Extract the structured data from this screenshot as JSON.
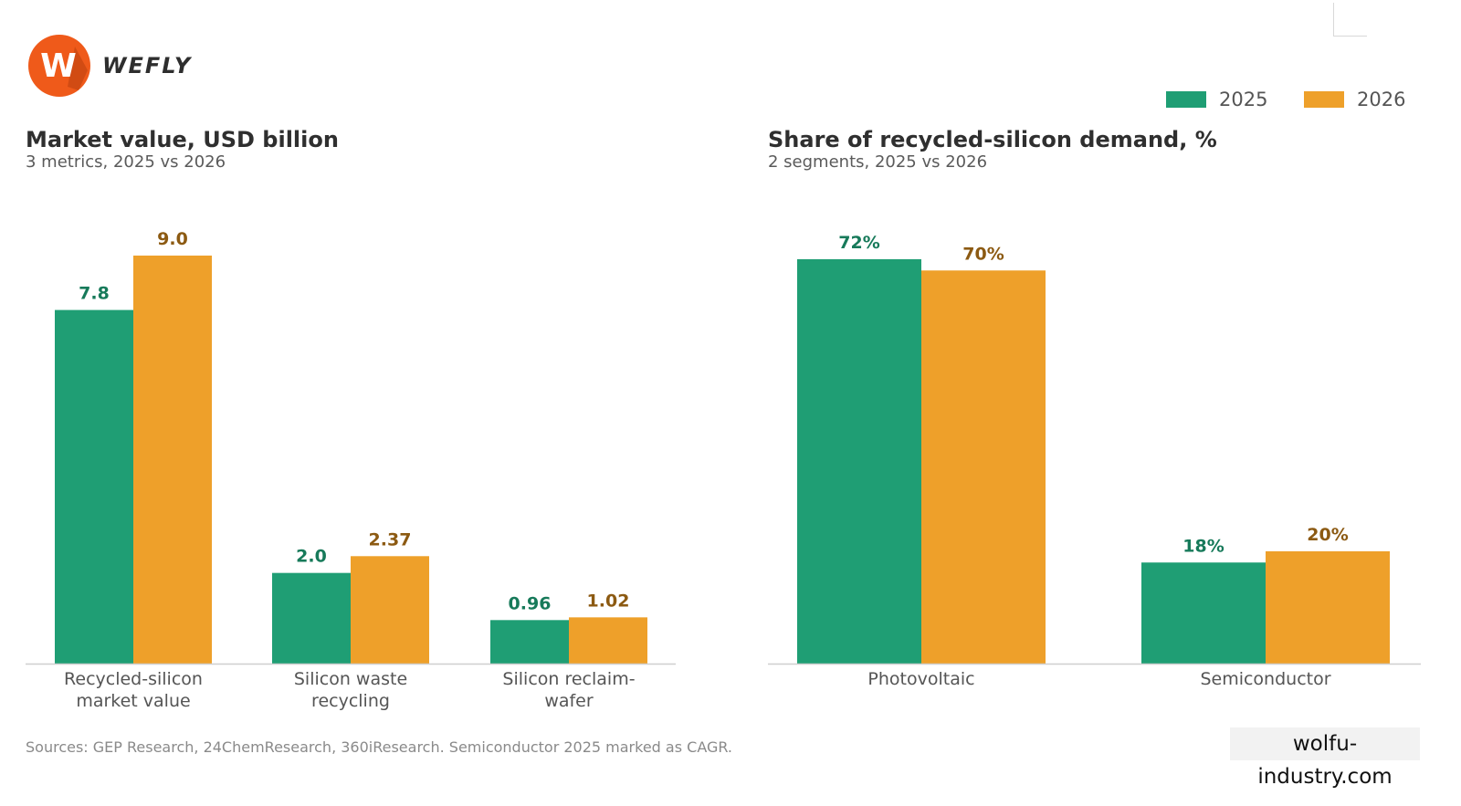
{
  "brand": {
    "name": "WEFLY",
    "badge_letter": "W",
    "badge_color": "#ef5a1a"
  },
  "legend": [
    {
      "label": "2025",
      "color": "#1f9e74"
    },
    {
      "label": "2026",
      "color": "#eea02a"
    }
  ],
  "chart_data": [
    {
      "type": "bar",
      "title": "Market value, USD billion",
      "subtitle": "3 metrics, 2025 vs 2026",
      "categories": [
        [
          "Recycled-silicon",
          "market value"
        ],
        [
          "Silicon waste",
          "recycling"
        ],
        [
          "Silicon reclaim-",
          "wafer"
        ]
      ],
      "series": [
        {
          "name": "2025",
          "values": [
            7.8,
            2.0,
            0.96
          ],
          "labels": [
            "7.8",
            "2.0",
            "0.96"
          ],
          "color": "#1f9e74",
          "label_color": "#177a5a"
        },
        {
          "name": "2026",
          "values": [
            9.0,
            2.37,
            1.02
          ],
          "labels": [
            "9.0",
            "2.37",
            "1.02"
          ],
          "color": "#eea02a",
          "label_color": "#8c5a12"
        }
      ],
      "ylim": [
        0,
        9.0
      ],
      "grid": false
    },
    {
      "type": "bar",
      "title": "Share of recycled-silicon demand, %",
      "subtitle": "2 segments, 2025 vs 2026",
      "categories": [
        [
          "Photovoltaic"
        ],
        [
          "Semiconductor"
        ]
      ],
      "series": [
        {
          "name": "2025",
          "values": [
            72,
            18
          ],
          "labels": [
            "72%",
            "18%"
          ],
          "color": "#1f9e74",
          "label_color": "#177a5a"
        },
        {
          "name": "2026",
          "values": [
            70,
            20
          ],
          "labels": [
            "70%",
            "20%"
          ],
          "color": "#eea02a",
          "label_color": "#8c5a12"
        }
      ],
      "ylim": [
        0,
        72
      ],
      "grid": false
    }
  ],
  "footnote": "Sources: GEP Research, 24ChemResearch, 360iResearch. Semiconductor 2025 marked as CAGR.",
  "watermark": "wolfu-industry.com"
}
